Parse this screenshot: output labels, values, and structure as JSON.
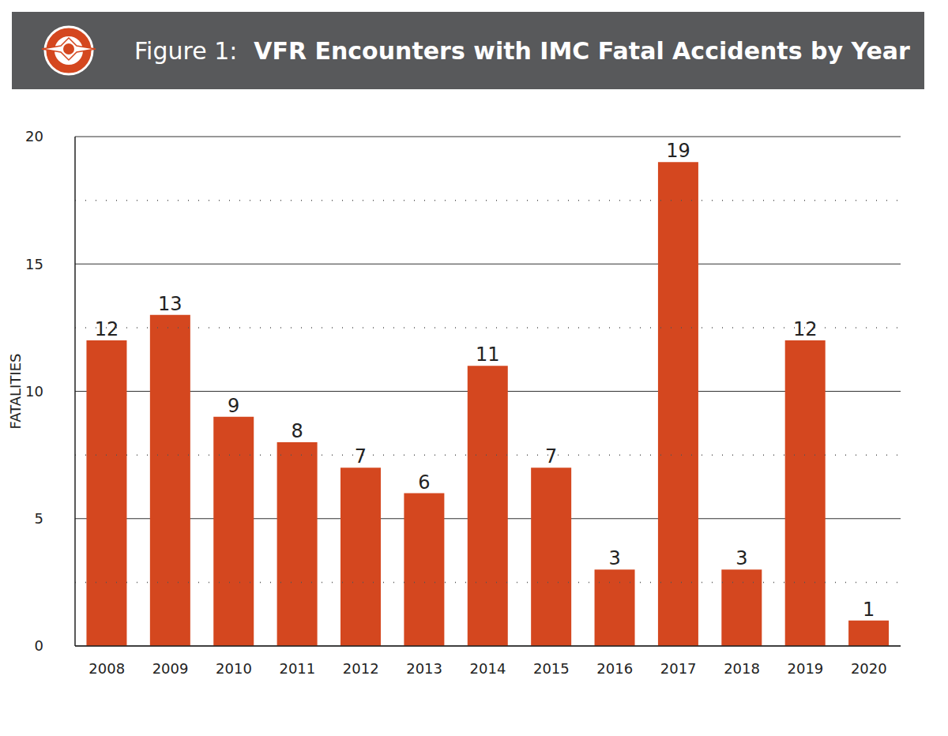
{
  "chart_data": {
    "type": "bar",
    "title": "Figure 1:  VFR Encounters with IMC Fatal Accidents by Year",
    "y_label": "FATALITIES",
    "categories": [
      "2008",
      "2009",
      "2010",
      "2011",
      "2012",
      "2013",
      "2014",
      "2015",
      "2016",
      "2017",
      "2018",
      "2019",
      "2020"
    ],
    "values": [
      12,
      13,
      9,
      8,
      7,
      6,
      11,
      7,
      3,
      19,
      3,
      12,
      1
    ],
    "color": "#d4471f",
    "ylim": [
      0,
      20
    ],
    "yticks": [
      0,
      5,
      10,
      15,
      20
    ],
    "grid": true,
    "data_labels": true
  }
}
